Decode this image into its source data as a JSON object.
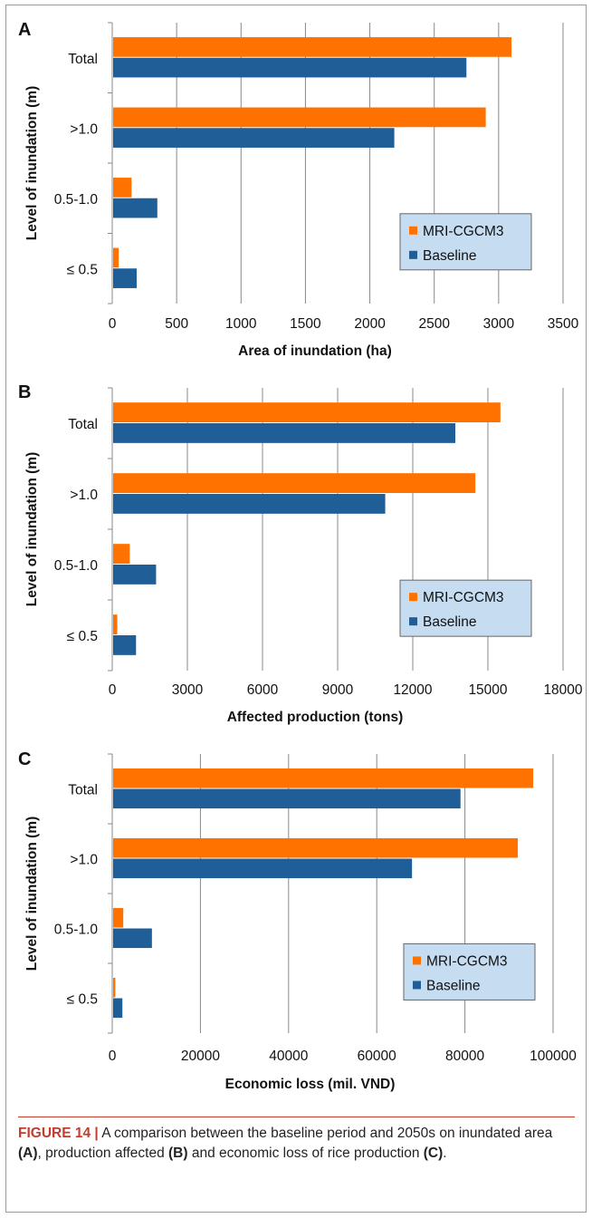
{
  "chart_data": [
    {
      "type": "bar",
      "orientation": "horizontal",
      "panel_label": "A",
      "categories": [
        "Total",
        ">1.0",
        "0.5-1.0",
        "≤ 0.5"
      ],
      "series": [
        {
          "name": "MRI-CGCM3",
          "color": "#ff7200",
          "values": [
            3100,
            2900,
            150,
            50
          ]
        },
        {
          "name": "Baseline",
          "color": "#1f5e97",
          "values": [
            2750,
            2190,
            350,
            190
          ]
        }
      ],
      "xlabel": "Area of inundation (ha)",
      "ylabel": "Level of inundation (m)",
      "xlim": [
        0,
        3500
      ],
      "xticks": [
        0,
        500,
        1000,
        1500,
        2000,
        2500,
        3000,
        3500
      ],
      "grid": "vertical",
      "legend_placement": "lower-right"
    },
    {
      "type": "bar",
      "orientation": "horizontal",
      "panel_label": "B",
      "categories": [
        "Total",
        ">1.0",
        "0.5-1.0",
        "≤ 0.5"
      ],
      "series": [
        {
          "name": "MRI-CGCM3",
          "color": "#ff7200",
          "values": [
            15500,
            14500,
            700,
            200
          ]
        },
        {
          "name": "Baseline",
          "color": "#1f5e97",
          "values": [
            13700,
            10900,
            1750,
            950
          ]
        }
      ],
      "xlabel": "Affected production (tons)",
      "ylabel": "Level of inundation (m)",
      "xlim": [
        0,
        18000
      ],
      "xticks": [
        0,
        3000,
        6000,
        9000,
        12000,
        15000,
        18000
      ],
      "grid": "vertical",
      "legend_placement": "lower-right"
    },
    {
      "type": "bar",
      "orientation": "horizontal",
      "panel_label": "C",
      "categories": [
        "Total",
        ">1.0",
        "0.5-1.0",
        "≤ 0.5"
      ],
      "series": [
        {
          "name": "MRI-CGCM3",
          "color": "#ff7200",
          "values": [
            95500,
            92000,
            2500,
            700
          ]
        },
        {
          "name": "Baseline",
          "color": "#1f5e97",
          "values": [
            79000,
            68000,
            9000,
            2300
          ]
        }
      ],
      "xlabel": "Economic loss (mil. VND)",
      "ylabel": "Level of inundation (m)",
      "xlim": [
        0,
        100000
      ],
      "xticks": [
        0,
        20000,
        40000,
        60000,
        80000,
        100000
      ],
      "grid": "vertical",
      "legend_placement": "lower-right"
    }
  ],
  "caption": {
    "figure_label": "FIGURE 14 |",
    "text_1": " A comparison between the baseline period and 2050s on inundated area ",
    "ref_a": "(A)",
    "text_2": ", production affected ",
    "ref_b": "(B)",
    "text_3": " and economic loss of rice production ",
    "ref_c": "(C)",
    "text_4": "."
  },
  "colors": {
    "legend_bg": "#c5dcf1",
    "grid": "#888888"
  }
}
